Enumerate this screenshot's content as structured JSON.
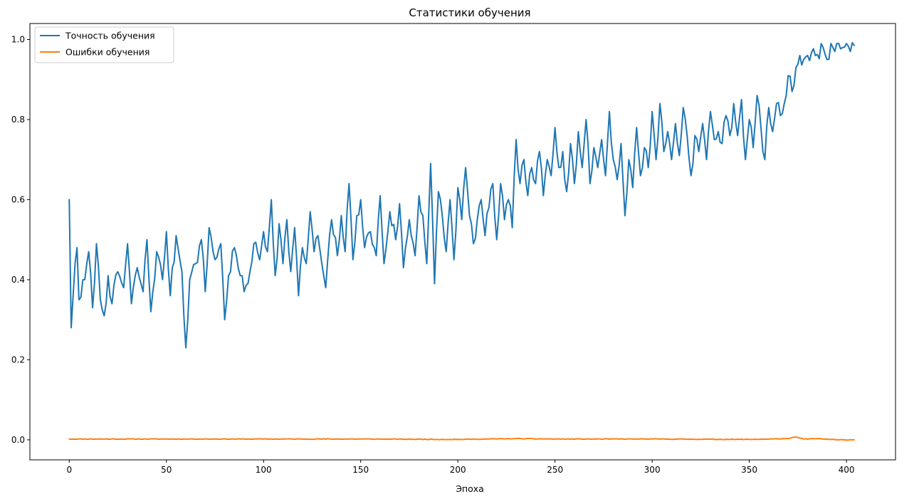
{
  "chart_data": {
    "type": "line",
    "title": "Статистики обучения",
    "xlabel": "Эпоха",
    "ylabel": "",
    "xlim": [
      -20.25,
      425.25
    ],
    "ylim": [
      -0.05,
      1.04
    ],
    "x_ticks": [
      0,
      50,
      100,
      150,
      200,
      250,
      300,
      350,
      400
    ],
    "y_ticks": [
      0.0,
      0.2,
      0.4,
      0.6,
      0.8,
      1.0
    ],
    "x_tick_labels": [
      "0",
      "50",
      "100",
      "150",
      "200",
      "250",
      "300",
      "350",
      "400"
    ],
    "y_tick_labels": [
      "0.0",
      "0.2",
      "0.4",
      "0.6",
      "0.8",
      "1.0"
    ],
    "grid": false,
    "legend_position": "top-left",
    "series": [
      {
        "name": "Точность обучения",
        "color": "#1f77b4",
        "keypoints": [
          [
            0,
            0.6
          ],
          [
            1,
            0.28
          ],
          [
            2,
            0.36
          ],
          [
            3,
            0.44
          ],
          [
            4,
            0.48
          ],
          [
            5,
            0.35
          ],
          [
            8,
            0.4
          ],
          [
            10,
            0.47
          ],
          [
            12,
            0.33
          ],
          [
            14,
            0.49
          ],
          [
            16,
            0.35
          ],
          [
            18,
            0.31
          ],
          [
            20,
            0.41
          ],
          [
            22,
            0.34
          ],
          [
            25,
            0.42
          ],
          [
            28,
            0.38
          ],
          [
            30,
            0.49
          ],
          [
            32,
            0.34
          ],
          [
            35,
            0.43
          ],
          [
            38,
            0.37
          ],
          [
            40,
            0.5
          ],
          [
            42,
            0.32
          ],
          [
            45,
            0.47
          ],
          [
            48,
            0.4
          ],
          [
            50,
            0.52
          ],
          [
            52,
            0.36
          ],
          [
            55,
            0.51
          ],
          [
            58,
            0.42
          ],
          [
            60,
            0.23
          ],
          [
            62,
            0.4
          ],
          [
            65,
            0.44
          ],
          [
            68,
            0.5
          ],
          [
            70,
            0.37
          ],
          [
            72,
            0.53
          ],
          [
            75,
            0.45
          ],
          [
            78,
            0.49
          ],
          [
            80,
            0.3
          ],
          [
            82,
            0.41
          ],
          [
            85,
            0.48
          ],
          [
            88,
            0.41
          ],
          [
            90,
            0.37
          ],
          [
            93,
            0.42
          ],
          [
            95,
            0.49
          ],
          [
            98,
            0.45
          ],
          [
            100,
            0.52
          ],
          [
            102,
            0.47
          ],
          [
            104,
            0.6
          ],
          [
            106,
            0.41
          ],
          [
            108,
            0.54
          ],
          [
            110,
            0.44
          ],
          [
            112,
            0.55
          ],
          [
            114,
            0.42
          ],
          [
            116,
            0.53
          ],
          [
            118,
            0.36
          ],
          [
            120,
            0.48
          ],
          [
            122,
            0.44
          ],
          [
            124,
            0.57
          ],
          [
            126,
            0.47
          ],
          [
            128,
            0.51
          ],
          [
            130,
            0.44
          ],
          [
            132,
            0.38
          ],
          [
            135,
            0.55
          ],
          [
            138,
            0.46
          ],
          [
            140,
            0.56
          ],
          [
            142,
            0.47
          ],
          [
            144,
            0.64
          ],
          [
            146,
            0.45
          ],
          [
            148,
            0.56
          ],
          [
            150,
            0.6
          ],
          [
            152,
            0.48
          ],
          [
            155,
            0.52
          ],
          [
            158,
            0.46
          ],
          [
            160,
            0.61
          ],
          [
            162,
            0.44
          ],
          [
            165,
            0.57
          ],
          [
            168,
            0.5
          ],
          [
            170,
            0.59
          ],
          [
            172,
            0.43
          ],
          [
            175,
            0.55
          ],
          [
            178,
            0.46
          ],
          [
            180,
            0.61
          ],
          [
            182,
            0.56
          ],
          [
            184,
            0.44
          ],
          [
            186,
            0.69
          ],
          [
            188,
            0.39
          ],
          [
            190,
            0.62
          ],
          [
            192,
            0.56
          ],
          [
            194,
            0.47
          ],
          [
            196,
            0.6
          ],
          [
            198,
            0.45
          ],
          [
            200,
            0.63
          ],
          [
            202,
            0.55
          ],
          [
            204,
            0.68
          ],
          [
            206,
            0.56
          ],
          [
            208,
            0.49
          ],
          [
            210,
            0.55
          ],
          [
            212,
            0.6
          ],
          [
            214,
            0.51
          ],
          [
            216,
            0.58
          ],
          [
            218,
            0.64
          ],
          [
            220,
            0.5
          ],
          [
            222,
            0.64
          ],
          [
            224,
            0.55
          ],
          [
            226,
            0.6
          ],
          [
            228,
            0.53
          ],
          [
            230,
            0.75
          ],
          [
            232,
            0.64
          ],
          [
            234,
            0.7
          ],
          [
            236,
            0.61
          ],
          [
            238,
            0.68
          ],
          [
            240,
            0.64
          ],
          [
            242,
            0.72
          ],
          [
            244,
            0.61
          ],
          [
            246,
            0.7
          ],
          [
            248,
            0.66
          ],
          [
            250,
            0.78
          ],
          [
            252,
            0.68
          ],
          [
            254,
            0.72
          ],
          [
            256,
            0.62
          ],
          [
            258,
            0.74
          ],
          [
            260,
            0.64
          ],
          [
            262,
            0.77
          ],
          [
            264,
            0.68
          ],
          [
            266,
            0.8
          ],
          [
            268,
            0.64
          ],
          [
            270,
            0.73
          ],
          [
            272,
            0.68
          ],
          [
            274,
            0.75
          ],
          [
            276,
            0.66
          ],
          [
            278,
            0.82
          ],
          [
            280,
            0.7
          ],
          [
            282,
            0.65
          ],
          [
            284,
            0.74
          ],
          [
            286,
            0.56
          ],
          [
            288,
            0.7
          ],
          [
            290,
            0.63
          ],
          [
            292,
            0.78
          ],
          [
            294,
            0.66
          ],
          [
            296,
            0.73
          ],
          [
            298,
            0.68
          ],
          [
            300,
            0.82
          ],
          [
            302,
            0.7
          ],
          [
            304,
            0.84
          ],
          [
            306,
            0.72
          ],
          [
            308,
            0.77
          ],
          [
            310,
            0.7
          ],
          [
            312,
            0.79
          ],
          [
            314,
            0.71
          ],
          [
            316,
            0.83
          ],
          [
            318,
            0.76
          ],
          [
            320,
            0.66
          ],
          [
            322,
            0.76
          ],
          [
            324,
            0.72
          ],
          [
            326,
            0.79
          ],
          [
            328,
            0.7
          ],
          [
            330,
            0.82
          ],
          [
            332,
            0.75
          ],
          [
            334,
            0.77
          ],
          [
            336,
            0.74
          ],
          [
            338,
            0.81
          ],
          [
            340,
            0.76
          ],
          [
            342,
            0.84
          ],
          [
            344,
            0.76
          ],
          [
            346,
            0.85
          ],
          [
            348,
            0.7
          ],
          [
            350,
            0.8
          ],
          [
            352,
            0.73
          ],
          [
            354,
            0.86
          ],
          [
            356,
            0.78
          ],
          [
            358,
            0.7
          ],
          [
            360,
            0.83
          ],
          [
            362,
            0.77
          ],
          [
            364,
            0.84
          ],
          [
            366,
            0.81
          ],
          [
            368,
            0.84
          ],
          [
            370,
            0.91
          ],
          [
            372,
            0.87
          ],
          [
            374,
            0.93
          ],
          [
            376,
            0.96
          ],
          [
            378,
            0.95
          ],
          [
            380,
            0.96
          ],
          [
            384,
            0.96
          ],
          [
            388,
            0.98
          ],
          [
            390,
            0.95
          ],
          [
            392,
            0.99
          ],
          [
            394,
            0.97
          ],
          [
            396,
            0.99
          ],
          [
            398,
            0.98
          ],
          [
            400,
            0.99
          ],
          [
            402,
            0.97
          ],
          [
            404,
            0.985
          ]
        ]
      },
      {
        "name": "Ошибки обучения",
        "color": "#ff7f0e",
        "keypoints": [
          [
            0,
            0.002
          ],
          [
            50,
            0.002
          ],
          [
            100,
            0.002
          ],
          [
            150,
            0.002
          ],
          [
            200,
            0.001
          ],
          [
            230,
            0.003
          ],
          [
            250,
            0.002
          ],
          [
            300,
            0.002
          ],
          [
            350,
            0.001
          ],
          [
            370,
            0.003
          ],
          [
            374,
            0.007
          ],
          [
            378,
            0.002
          ],
          [
            385,
            0.003
          ],
          [
            395,
            0.0
          ],
          [
            404,
            0.0
          ]
        ]
      }
    ]
  }
}
